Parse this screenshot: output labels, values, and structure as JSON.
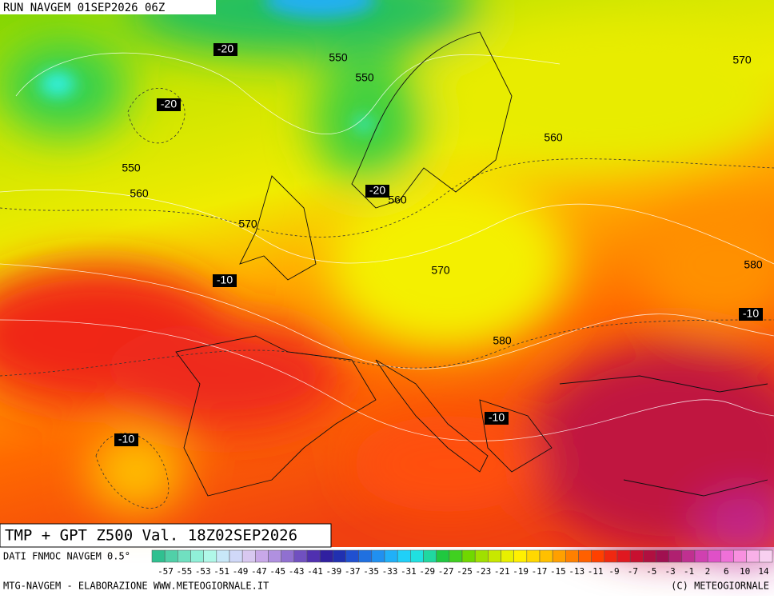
{
  "header": {
    "run": "RUN NAVGEM 01SEP2026 06Z"
  },
  "map": {
    "contour_labels": [
      "-20",
      "550",
      "550",
      "-20",
      "560",
      "570",
      "550",
      "560",
      "-20",
      "560",
      "570",
      "-10",
      "570",
      "580",
      "-10",
      "580",
      "-10",
      "-10"
    ]
  },
  "footer": {
    "title": "TMP + GPT Z500 Val. 18Z02SEP2026",
    "source": "DATI FNMOC NAVGEM 0.5°",
    "credit": "MTG-NAVGEM - ELABORAZIONE WWW.METEOGIORNALE.IT",
    "copyright": "(C) METEOGIORNALE"
  },
  "legend": {
    "labels": [
      -57,
      -55,
      -53,
      -51,
      -49,
      -47,
      -45,
      -43,
      -41,
      -39,
      -37,
      -35,
      -33,
      -31,
      -29,
      -27,
      -25,
      -23,
      -21,
      -19,
      -17,
      -15,
      -13,
      -11,
      -9,
      -7,
      -5,
      -3,
      -1,
      2,
      6,
      10,
      14
    ]
  }
}
